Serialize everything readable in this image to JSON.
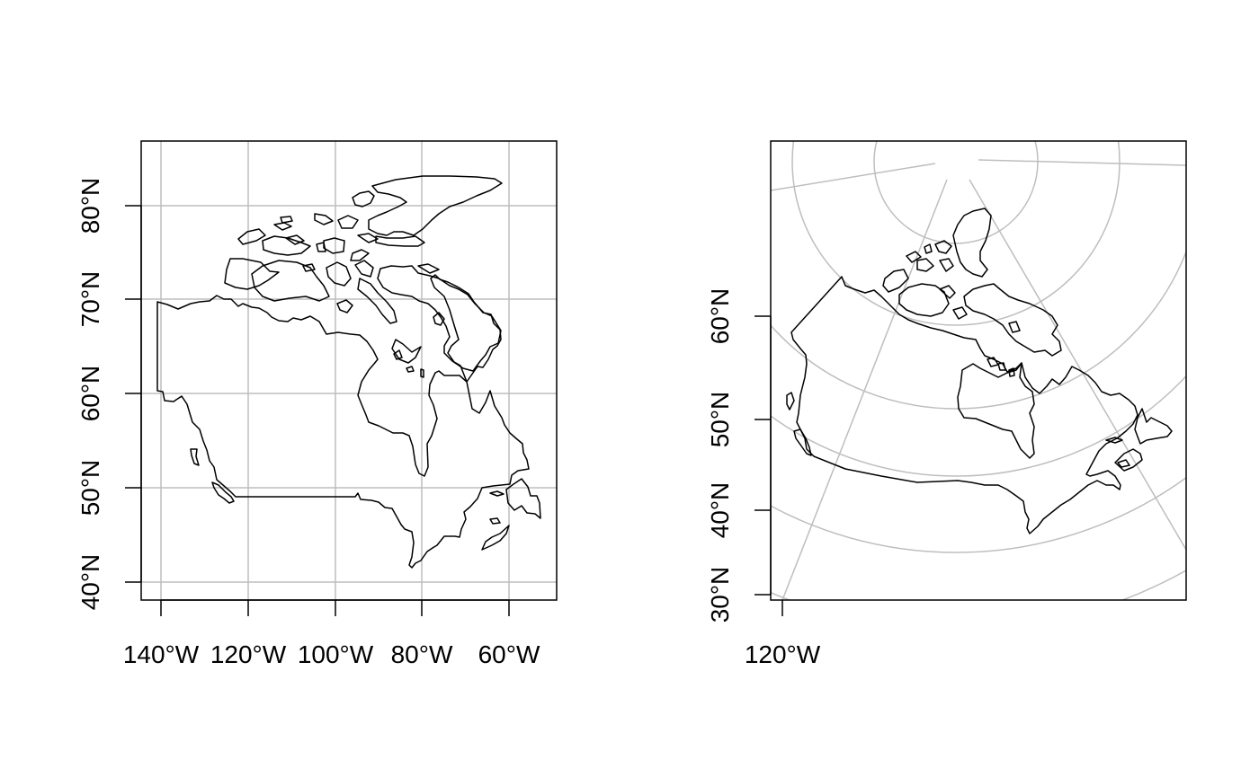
{
  "colors": {
    "background": "#ffffff",
    "graticule": "#bebebe",
    "coastline": "#000000",
    "frame": "#000000"
  },
  "panels": [
    {
      "projection": "longlat",
      "x_tick_labels": [
        "140°W",
        "120°W",
        "100°W",
        "80°W",
        "60°W"
      ],
      "y_tick_labels": [
        "40°N",
        "50°N",
        "60°N",
        "70°N",
        "80°N"
      ]
    },
    {
      "projection": "polar-conic",
      "x_tick_labels": [
        "120°W"
      ],
      "y_tick_labels": [
        "30°N",
        "40°N",
        "50°N",
        "60°N"
      ]
    }
  ]
}
